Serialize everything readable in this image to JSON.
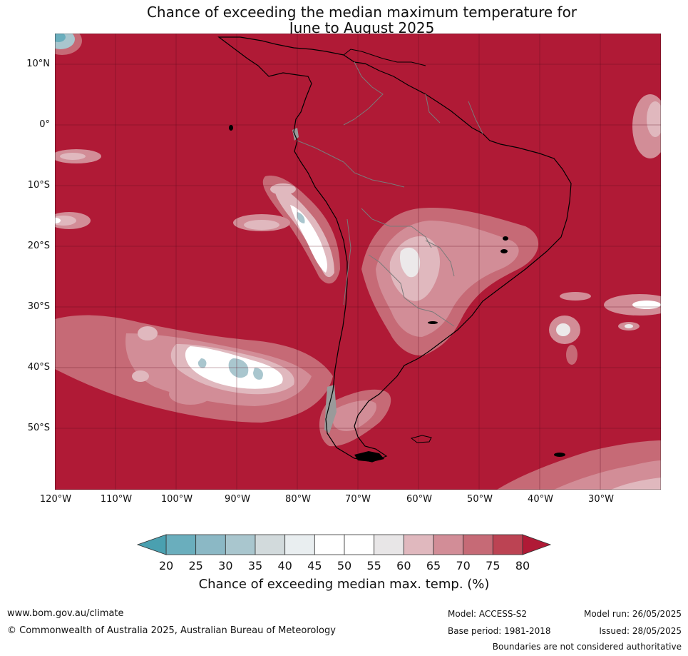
{
  "title_line1": "Chance of exceeding the median maximum temperature for",
  "title_line2": "June to August 2025",
  "lat_labels": [
    "10°N",
    "0°",
    "10°S",
    "20°S",
    "30°S",
    "40°S",
    "50°S"
  ],
  "lon_labels": [
    "120°W",
    "110°W",
    "100°W",
    "90°W",
    "80°W",
    "70°W",
    "60°W",
    "50°W",
    "40°W",
    "30°W"
  ],
  "colorbar": {
    "ticks": [
      "20",
      "25",
      "30",
      "35",
      "40",
      "45",
      "50",
      "55",
      "60",
      "65",
      "70",
      "75",
      "80"
    ],
    "colors": [
      "#6aaebd",
      "#8bb8c5",
      "#a9c6ce",
      "#d2dadc",
      "#e9eef0",
      "#ffffff",
      "#ffffff",
      "#e8e6e7",
      "#e0b8be",
      "#d28d97",
      "#c66a76",
      "#bc4353"
    ],
    "low_extend_color": "#4aa0b0",
    "high_extend_color": "#b01a36",
    "label": "Chance of exceeding median max. temp. (%)"
  },
  "map_colors": {
    "high": "#b01a36",
    "c75": "#bc4353",
    "c70": "#c66a76",
    "c65": "#d28d97",
    "c60": "#e0b8be",
    "c55": "#ece9ea",
    "c50": "#ffffff",
    "c35": "#a9c6ce",
    "c25": "#6aaebd",
    "land_mask": "#9a9a9a"
  },
  "footer": {
    "website": "www.bom.gov.au/climate",
    "copyright": "© Commonwealth of Australia 2025, Australian Bureau of Meteorology",
    "model": "Model: ACCESS-S2",
    "base_period": "Base period: 1981-2018",
    "model_run": "Model run: 26/05/2025",
    "issued": "Issued: 28/05/2025",
    "disclaimer": "Boundaries are not considered authoritative"
  }
}
